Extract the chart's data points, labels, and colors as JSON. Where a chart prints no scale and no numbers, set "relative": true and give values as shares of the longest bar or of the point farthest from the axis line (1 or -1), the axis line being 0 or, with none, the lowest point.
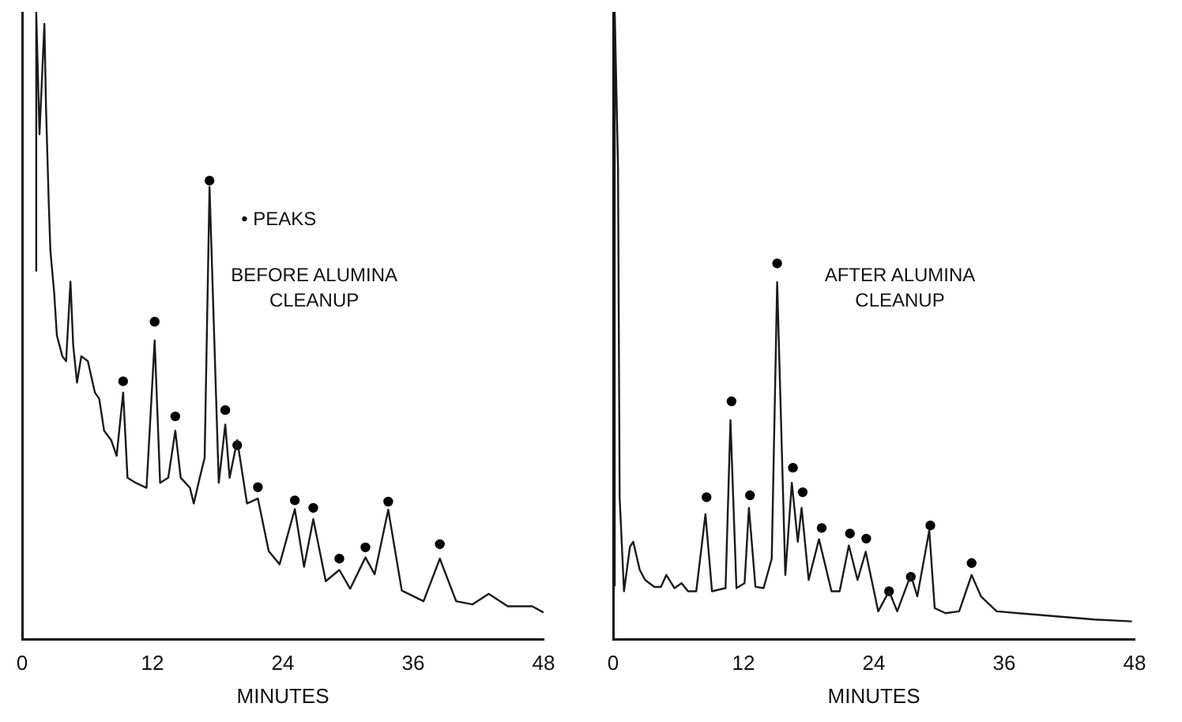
{
  "chart_data": [
    {
      "type": "line",
      "relative": true,
      "xlabel": "MINUTES",
      "xlim": [
        0,
        48
      ],
      "xticks": [
        0,
        12,
        24,
        36,
        48
      ],
      "annotations": [
        "• PEAKS",
        "BEFORE ALUMINA\nCLEANUP"
      ],
      "series": [
        {
          "marker": "none",
          "color": "#1a1a1a",
          "x": [
            1.3,
            1.3,
            1.6,
            2.05,
            2.2,
            2.45,
            2.6,
            2.95,
            3.2,
            3.7,
            4.05,
            4.45,
            4.7,
            5.05,
            5.45,
            6.05,
            6.7,
            7.1,
            7.55,
            8.2,
            8.7,
            9.3,
            9.7,
            10.45,
            11.45,
            12.2,
            12.7,
            13.45,
            14.1,
            14.6,
            15.45,
            15.8,
            16.35,
            16.8,
            17.25,
            18.1,
            18.7,
            19.1,
            19.8,
            20.7,
            21.7,
            22.7,
            23.7,
            25.1,
            25.95,
            26.8,
            27.95,
            29.2,
            30.2,
            31.6,
            32.45,
            33.7,
            34.95,
            36.95,
            38.45,
            39.95,
            41.45,
            42.95,
            44.7,
            46.95,
            48
          ],
          "values": [
            0.587,
            1.0,
            0.806,
            0.982,
            0.848,
            0.697,
            0.621,
            0.553,
            0.485,
            0.452,
            0.444,
            0.571,
            0.47,
            0.41,
            0.452,
            0.444,
            0.394,
            0.384,
            0.333,
            0.318,
            0.293,
            0.394,
            0.258,
            0.25,
            0.242,
            0.477,
            0.25,
            0.258,
            0.333,
            0.258,
            0.242,
            0.217,
            0.258,
            0.29,
            0.722,
            0.25,
            0.343,
            0.258,
            0.318,
            0.217,
            0.225,
            0.141,
            0.12,
            0.208,
            0.116,
            0.192,
            0.093,
            0.111,
            0.081,
            0.131,
            0.104,
            0.207,
            0.078,
            0.061,
            0.129,
            0.061,
            0.056,
            0.073,
            0.053,
            0.053,
            0.043
          ]
        },
        {
          "type": "scatter",
          "marker": "circle",
          "color": "#000000",
          "x": [
            9.3,
            12.2,
            14.1,
            17.25,
            18.7,
            19.8,
            21.7,
            25.1,
            26.8,
            29.2,
            31.6,
            33.7,
            38.45
          ],
          "values": [
            0.412,
            0.507,
            0.356,
            0.732,
            0.366,
            0.31,
            0.243,
            0.222,
            0.21,
            0.129,
            0.147,
            0.22,
            0.152
          ]
        }
      ]
    },
    {
      "type": "line",
      "relative": true,
      "xlabel": "MINUTES",
      "xlim": [
        0,
        48
      ],
      "xticks": [
        0,
        12,
        24,
        36,
        48
      ],
      "annotations": [
        "AFTER ALUMINA\nCLEANUP"
      ],
      "series": [
        {
          "marker": "none",
          "color": "#1a1a1a",
          "x": [
            0.15,
            0.15,
            0.45,
            0.6,
            1.0,
            1.55,
            1.85,
            2.45,
            2.95,
            3.8,
            4.4,
            4.9,
            5.65,
            6.3,
            6.9,
            7.65,
            8.5,
            9.1,
            10.35,
            10.8,
            11.35,
            12.1,
            12.5,
            13.1,
            13.85,
            14.6,
            15.1,
            15.85,
            16.45,
            17.0,
            17.35,
            18.0,
            18.95,
            20.1,
            20.85,
            21.7,
            22.5,
            23.25,
            24.4,
            25.4,
            26.15,
            27.4,
            28.0,
            29.1,
            29.6,
            30.6,
            31.85,
            33.0,
            33.85,
            35.3,
            37.3,
            40.8,
            44.3,
            47.75
          ],
          "values": [
            0.085,
            1.0,
            0.754,
            0.227,
            0.077,
            0.148,
            0.156,
            0.111,
            0.095,
            0.084,
            0.084,
            0.103,
            0.082,
            0.09,
            0.077,
            0.077,
            0.2,
            0.077,
            0.082,
            0.35,
            0.082,
            0.09,
            0.21,
            0.084,
            0.082,
            0.129,
            0.57,
            0.103,
            0.25,
            0.156,
            0.21,
            0.095,
            0.16,
            0.077,
            0.077,
            0.15,
            0.095,
            0.14,
            0.045,
            0.077,
            0.045,
            0.103,
            0.069,
            0.174,
            0.05,
            0.042,
            0.045,
            0.103,
            0.069,
            0.045,
            0.042,
            0.037,
            0.032,
            0.029
          ]
        },
        {
          "type": "scatter",
          "marker": "circle",
          "color": "#000000",
          "x": [
            8.6,
            10.9,
            12.6,
            15.1,
            16.55,
            17.45,
            19.2,
            21.8,
            23.3,
            25.4,
            27.4,
            29.2,
            33.0
          ],
          "values": [
            0.227,
            0.38,
            0.23,
            0.6,
            0.274,
            0.235,
            0.178,
            0.169,
            0.161,
            0.077,
            0.1,
            0.182,
            0.122
          ]
        }
      ]
    }
  ]
}
